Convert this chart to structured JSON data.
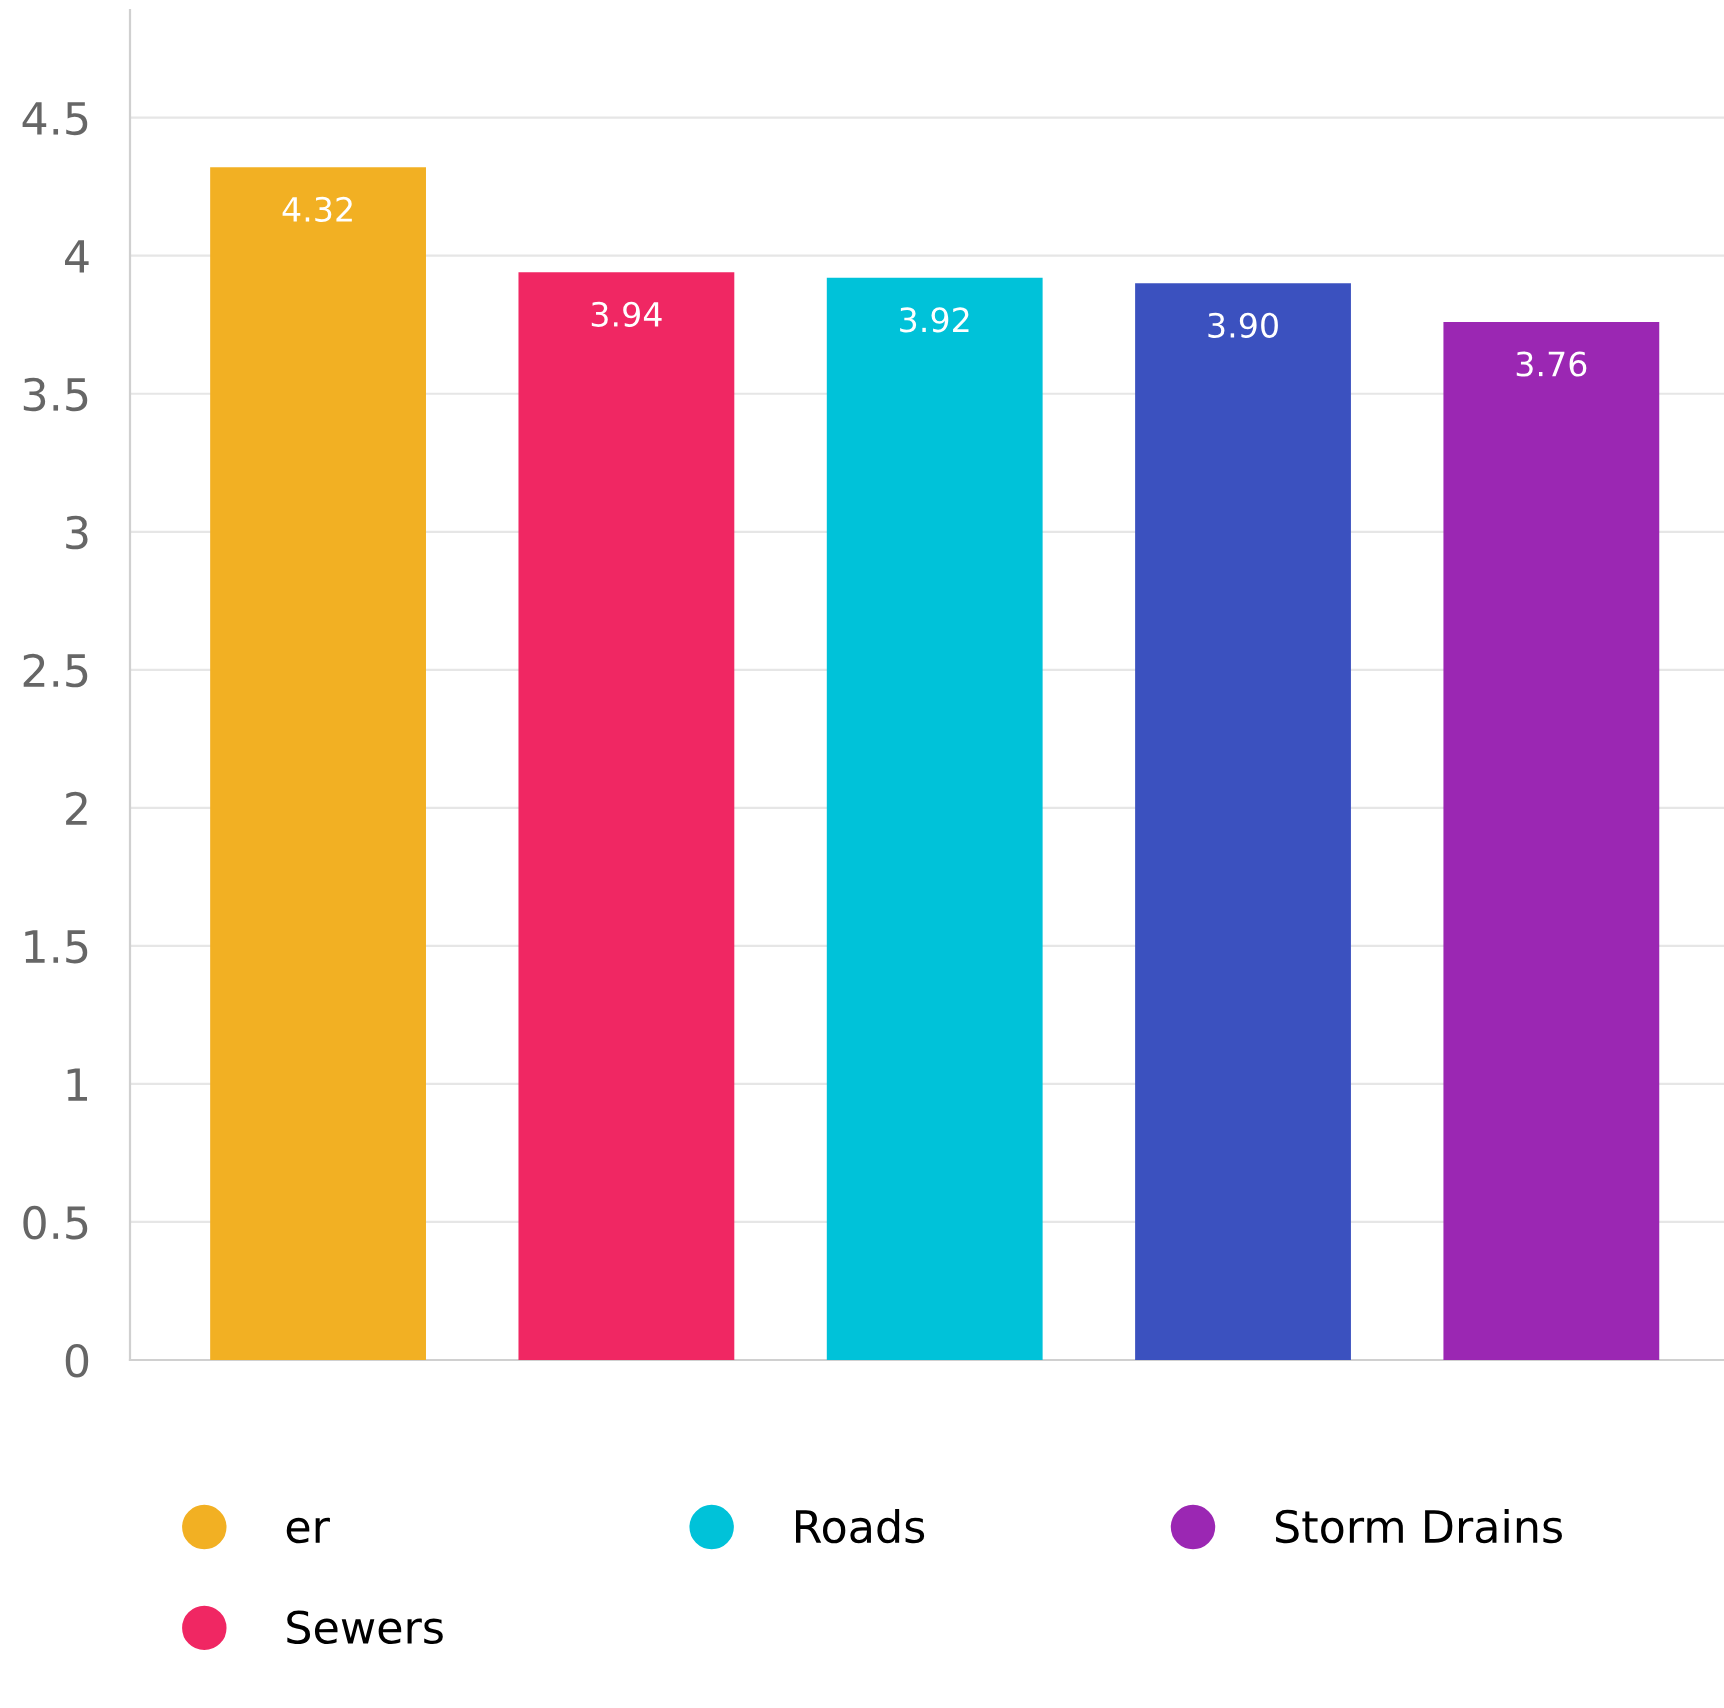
{
  "chart_data": {
    "type": "bar",
    "categories": [
      null,
      null,
      null,
      null,
      null
    ],
    "series": [
      {
        "name": "er",
        "color": "#f2b023",
        "values": [
          4.32,
          null,
          null,
          null,
          null
        ]
      },
      {
        "name": "Sewers",
        "color": "#f02763",
        "values": [
          null,
          3.94,
          null,
          null,
          null
        ]
      },
      {
        "name": "Roads",
        "color": "#00c2d9",
        "values": [
          null,
          null,
          3.92,
          null,
          null
        ]
      },
      {
        "color": "#3b51bf",
        "values": [
          null,
          null,
          null,
          3.9,
          null
        ]
      },
      {
        "name": "Storm Drains",
        "color": "#9b27b3",
        "values": [
          null,
          null,
          null,
          null,
          3.76
        ]
      }
    ],
    "ylim": [
      0,
      4.89
    ],
    "yticks": [
      0,
      {
        "value": 0.5,
        "label": "0.5"
      },
      1,
      {
        "value": 1.5,
        "label": "1.5"
      },
      2,
      {
        "value": 2.5,
        "label": "2.5"
      },
      3,
      {
        "value": 3.5,
        "label": "3.5"
      },
      4,
      {
        "value": 4.5,
        "label": "4.5"
      }
    ],
    "value_labels": [
      "4.32",
      "3.94",
      "3.92",
      "3.90",
      "3.76"
    ],
    "grid": "y",
    "legend": "bottom"
  }
}
